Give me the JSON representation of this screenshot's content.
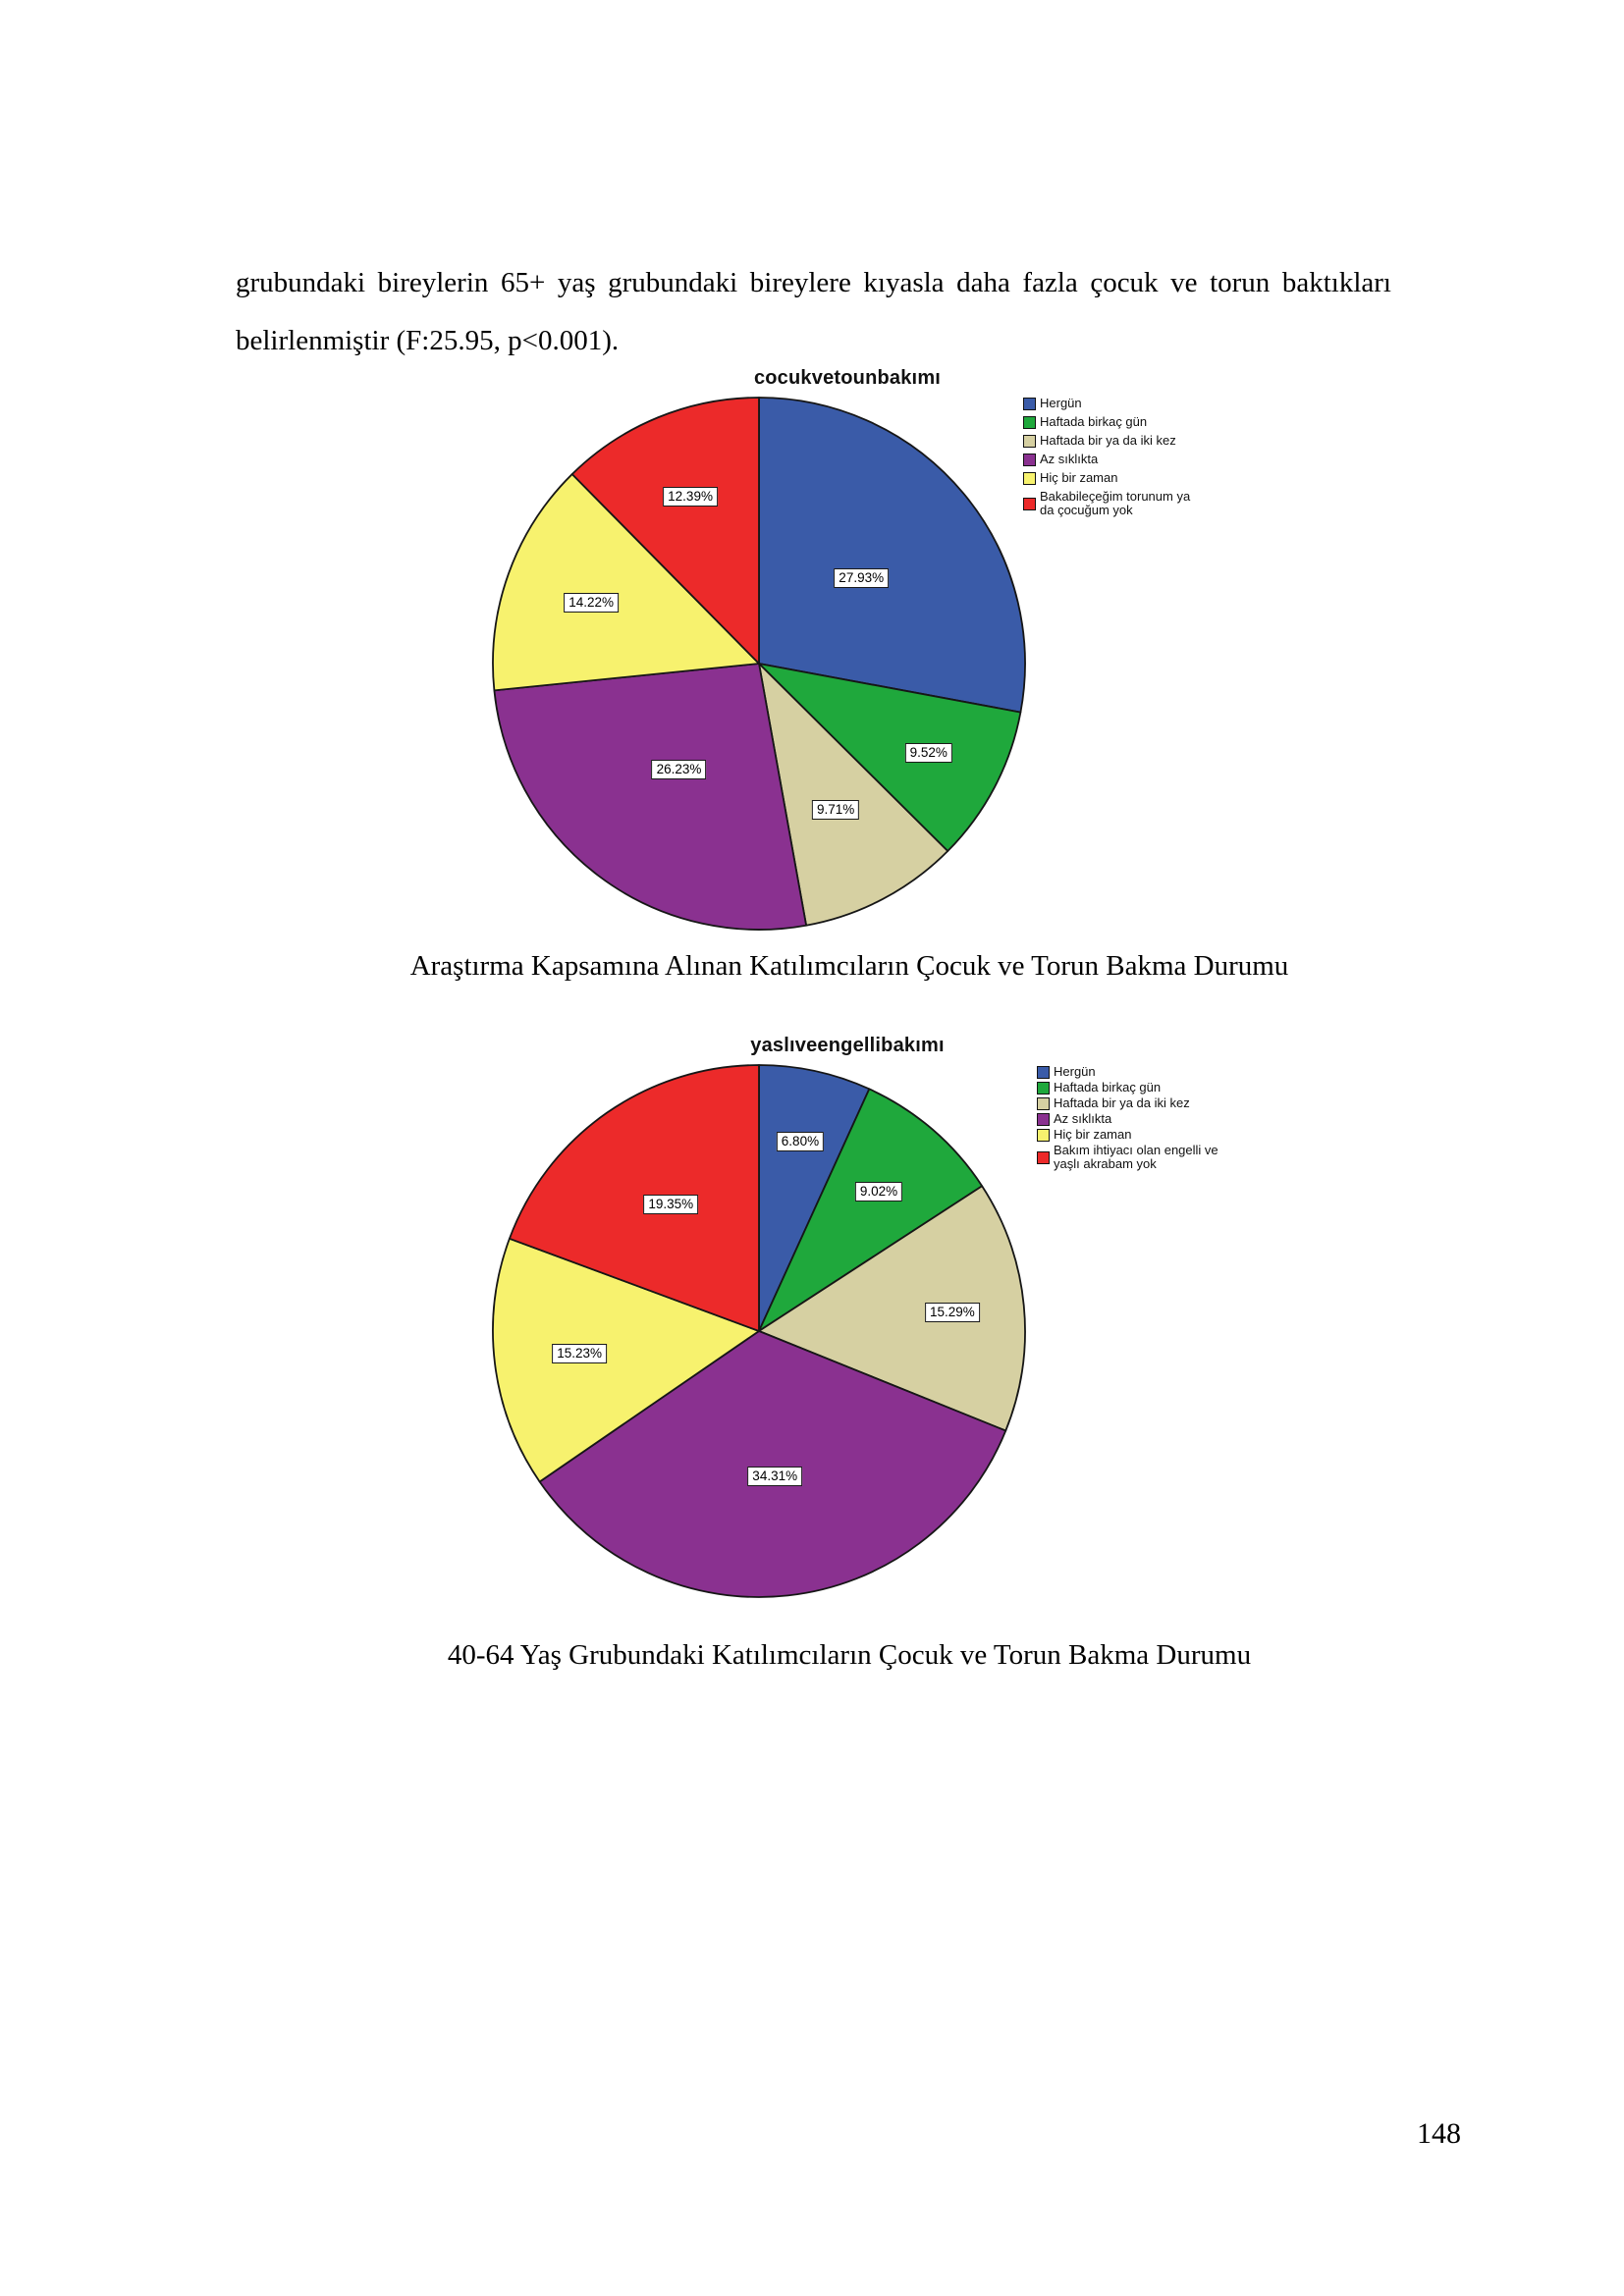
{
  "document": {
    "paragraph": "grubundaki bireylerin 65+ yaş grubundaki bireylere kıyasla daha fazla çocuk ve torun baktıkları belirlenmiştir (F:25.95, p<0.001).",
    "page_number": "148"
  },
  "chart_data": [
    {
      "type": "pie",
      "title": "cocukvetounbakımı",
      "caption": "Araştırma Kapsamına Alınan Katılımcıların Çocuk ve Torun Bakma Durumu",
      "legend_position": "right",
      "start_angle": "top",
      "direction": "clockwise",
      "slices": [
        {
          "label": "Hergün",
          "value": 27.93,
          "display": "27.93%",
          "color": "#3A5BA8"
        },
        {
          "label": "Haftada birkaç gün",
          "value": 9.52,
          "display": "9.52%",
          "color": "#1FA83C"
        },
        {
          "label": "Haftada bir ya da iki kez",
          "value": 9.71,
          "display": "9.71%",
          "color": "#D6D0A2"
        },
        {
          "label": "Az sıklıkta",
          "value": 26.23,
          "display": "26.23%",
          "color": "#8A3190"
        },
        {
          "label": "Hiç bir zaman",
          "value": 14.22,
          "display": "14.22%",
          "color": "#F7F26E"
        },
        {
          "label": "Bakabileçeğim torunum ya da çocuğum yok",
          "value": 12.39,
          "display": "12.39%",
          "color": "#EC2A2A"
        }
      ]
    },
    {
      "type": "pie",
      "title": "yaslıveengellibakımı",
      "caption": "40-64 Yaş Grubundaki Katılımcıların Çocuk ve Torun Bakma Durumu",
      "legend_position": "right",
      "start_angle": "top",
      "direction": "clockwise",
      "slices": [
        {
          "label": "Hergün",
          "value": 6.8,
          "display": "6.80%",
          "color": "#3A5BA8"
        },
        {
          "label": "Haftada birkaç gün",
          "value": 9.02,
          "display": "9.02%",
          "color": "#1FA83C"
        },
        {
          "label": "Haftada bir ya da iki kez",
          "value": 15.29,
          "display": "15.29%",
          "color": "#D6D0A2"
        },
        {
          "label": "Az sıklıkta",
          "value": 34.31,
          "display": "34.31%",
          "color": "#8A3190"
        },
        {
          "label": "Hiç bir zaman",
          "value": 15.23,
          "display": "15.23%",
          "color": "#F7F26E"
        },
        {
          "label": "Bakım ihtiyacı olan engelli ve yaşlı akrabam yok",
          "value": 19.35,
          "display": "19.35%",
          "color": "#EC2A2A"
        }
      ]
    }
  ]
}
